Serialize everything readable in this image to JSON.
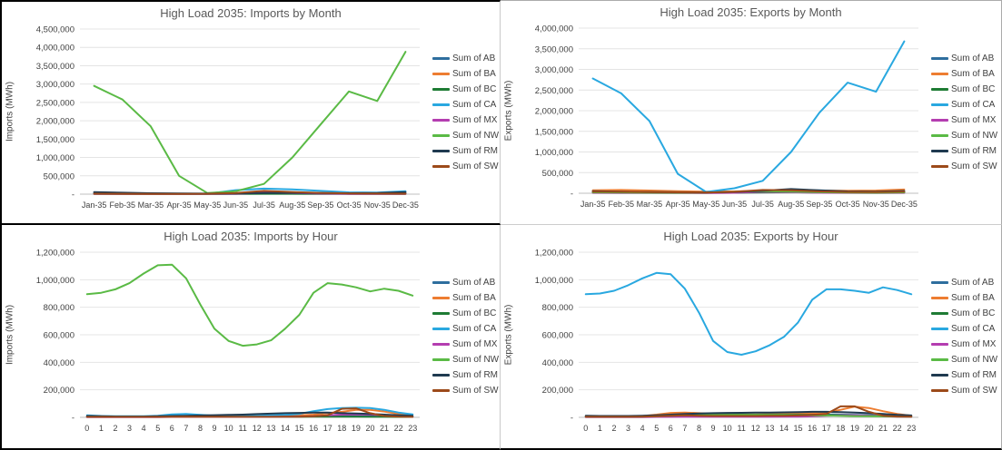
{
  "colors": {
    "grid": "#e4e4e4",
    "axis_line": "#bfbfbf",
    "title_text": "#595959",
    "tick_text": "#3f3f3f"
  },
  "palette": {
    "AB": "#2E6E9E",
    "BA": "#ED7D31",
    "BC": "#1E7B34",
    "CA": "#29A8E0",
    "MX": "#B43DB0",
    "NW": "#5ABA45",
    "RM": "#1F3A50",
    "SW": "#9C4A1A"
  },
  "chart_data": [
    {
      "type": "line",
      "title": "High Load 2035: Imports by Month",
      "ylabel": "Imports (MWh)",
      "xlabel": "",
      "ylim": [
        0,
        4500000
      ],
      "ystep": 500000,
      "zero_tick_label": "-",
      "grid": true,
      "legend_position": "right",
      "categories": [
        "Jan-35",
        "Feb-35",
        "Mar-35",
        "Apr-35",
        "May-35",
        "Jun-35",
        "Jul-35",
        "Aug-35",
        "Sep-35",
        "Oct-35",
        "Nov-35",
        "Dec-35"
      ],
      "series": [
        {
          "name": "Sum of AB",
          "key": "AB",
          "values": [
            20000,
            15000,
            12000,
            10000,
            8000,
            15000,
            20000,
            18000,
            15000,
            12000,
            12000,
            25000
          ]
        },
        {
          "name": "Sum of BA",
          "key": "BA",
          "values": [
            10000,
            8000,
            8000,
            10000,
            12000,
            15000,
            30000,
            25000,
            20000,
            15000,
            12000,
            10000
          ]
        },
        {
          "name": "Sum of BC",
          "key": "BC",
          "values": [
            8000,
            6000,
            5000,
            5000,
            5000,
            8000,
            10000,
            10000,
            8000,
            6000,
            6000,
            8000
          ]
        },
        {
          "name": "Sum of CA",
          "key": "CA",
          "values": [
            30000,
            25000,
            20000,
            15000,
            10000,
            110000,
            150000,
            130000,
            90000,
            50000,
            45000,
            80000
          ]
        },
        {
          "name": "Sum of MX",
          "key": "MX",
          "values": [
            5000,
            5000,
            5000,
            5000,
            5000,
            10000,
            40000,
            30000,
            15000,
            8000,
            5000,
            5000
          ]
        },
        {
          "name": "Sum of NW",
          "key": "NW",
          "values": [
            2950000,
            2580000,
            1850000,
            500000,
            30000,
            80000,
            280000,
            1000000,
            1900000,
            2800000,
            2540000,
            3880000
          ]
        },
        {
          "name": "Sum of RM",
          "key": "RM",
          "values": [
            55000,
            40000,
            25000,
            20000,
            15000,
            20000,
            30000,
            35000,
            30000,
            25000,
            30000,
            55000
          ]
        },
        {
          "name": "Sum of SW",
          "key": "SW",
          "values": [
            12000,
            10000,
            8000,
            8000,
            10000,
            30000,
            90000,
            60000,
            35000,
            20000,
            15000,
            12000
          ]
        }
      ]
    },
    {
      "type": "line",
      "title": "High Load 2035: Exports by Month",
      "ylabel": "Exports (MWh)",
      "xlabel": "",
      "ylim": [
        0,
        4000000
      ],
      "ystep": 500000,
      "zero_tick_label": "-",
      "grid": true,
      "legend_position": "right",
      "categories": [
        "Jan-35",
        "Feb-35",
        "Mar-35",
        "Apr-35",
        "May-35",
        "Jun-35",
        "Jul-35",
        "Aug-35",
        "Sep-35",
        "Oct-35",
        "Nov-35",
        "Dec-35"
      ],
      "series": [
        {
          "name": "Sum of AB",
          "key": "AB",
          "values": [
            40000,
            35000,
            30000,
            25000,
            20000,
            25000,
            40000,
            90000,
            60000,
            40000,
            35000,
            45000
          ]
        },
        {
          "name": "Sum of BA",
          "key": "BA",
          "values": [
            70000,
            80000,
            65000,
            50000,
            40000,
            45000,
            60000,
            70000,
            65000,
            60000,
            65000,
            90000
          ]
        },
        {
          "name": "Sum of BC",
          "key": "BC",
          "values": [
            15000,
            12000,
            10000,
            8000,
            8000,
            12000,
            20000,
            25000,
            18000,
            12000,
            12000,
            15000
          ]
        },
        {
          "name": "Sum of CA",
          "key": "CA",
          "values": [
            2780000,
            2420000,
            1750000,
            470000,
            30000,
            120000,
            300000,
            1000000,
            1950000,
            2680000,
            2460000,
            3680000
          ]
        },
        {
          "name": "Sum of MX",
          "key": "MX",
          "values": [
            8000,
            6000,
            5000,
            5000,
            5000,
            10000,
            35000,
            25000,
            12000,
            8000,
            6000,
            8000
          ]
        },
        {
          "name": "Sum of NW",
          "key": "NW",
          "values": [
            20000,
            15000,
            12000,
            10000,
            15000,
            40000,
            50000,
            40000,
            25000,
            15000,
            12000,
            20000
          ]
        },
        {
          "name": "Sum of RM",
          "key": "RM",
          "values": [
            50000,
            40000,
            30000,
            25000,
            20000,
            30000,
            60000,
            100000,
            70000,
            45000,
            40000,
            55000
          ]
        },
        {
          "name": "Sum of SW",
          "key": "SW",
          "values": [
            40000,
            35000,
            28000,
            22000,
            18000,
            35000,
            80000,
            70000,
            45000,
            30000,
            28000,
            40000
          ]
        }
      ]
    },
    {
      "type": "line",
      "title": "High Load 2035: Imports by Hour",
      "ylabel": "Imports (MWh)",
      "xlabel": "",
      "ylim": [
        0,
        1200000
      ],
      "ystep": 200000,
      "zero_tick_label": "-",
      "grid": true,
      "legend_position": "right",
      "categories": [
        "0",
        "1",
        "2",
        "3",
        "4",
        "5",
        "6",
        "7",
        "8",
        "9",
        "10",
        "11",
        "12",
        "13",
        "14",
        "15",
        "16",
        "17",
        "18",
        "19",
        "20",
        "21",
        "22",
        "23"
      ],
      "series": [
        {
          "name": "Sum of AB",
          "key": "AB",
          "values": [
            6000,
            5000,
            5000,
            5000,
            5000,
            5000,
            6000,
            7000,
            7000,
            6000,
            6000,
            6000,
            6000,
            7000,
            7000,
            8000,
            9000,
            10000,
            10000,
            9000,
            8000,
            8000,
            7000,
            6000
          ]
        },
        {
          "name": "Sum of BA",
          "key": "BA",
          "values": [
            4000,
            3000,
            3000,
            3000,
            3000,
            4000,
            6000,
            8000,
            8000,
            8000,
            8000,
            8000,
            9000,
            10000,
            12000,
            15000,
            20000,
            30000,
            40000,
            55000,
            55000,
            42000,
            25000,
            12000
          ]
        },
        {
          "name": "Sum of BC",
          "key": "BC",
          "values": [
            3000,
            3000,
            3000,
            3000,
            3000,
            3000,
            3000,
            4000,
            4000,
            4000,
            4000,
            4000,
            4000,
            4000,
            4000,
            4000,
            5000,
            5000,
            5000,
            5000,
            4000,
            4000,
            3000,
            3000
          ]
        },
        {
          "name": "Sum of CA",
          "key": "CA",
          "values": [
            15000,
            10000,
            8000,
            8000,
            8000,
            12000,
            22000,
            25000,
            18000,
            12000,
            10000,
            10000,
            12000,
            15000,
            18000,
            25000,
            45000,
            60000,
            68000,
            70000,
            68000,
            55000,
            35000,
            22000
          ]
        },
        {
          "name": "Sum of MX",
          "key": "MX",
          "values": [
            2000,
            2000,
            2000,
            2000,
            2000,
            2000,
            3000,
            3000,
            3000,
            3000,
            3000,
            3000,
            3000,
            4000,
            5000,
            6000,
            8000,
            15000,
            20000,
            22000,
            20000,
            15000,
            10000,
            4000
          ]
        },
        {
          "name": "Sum of NW",
          "key": "NW",
          "values": [
            895000,
            905000,
            930000,
            975000,
            1045000,
            1105000,
            1110000,
            1010000,
            820000,
            645000,
            555000,
            520000,
            530000,
            560000,
            645000,
            745000,
            905000,
            975000,
            965000,
            945000,
            915000,
            935000,
            920000,
            885000
          ]
        },
        {
          "name": "Sum of RM",
          "key": "RM",
          "values": [
            10000,
            8000,
            6000,
            6000,
            6000,
            8000,
            10000,
            12000,
            14000,
            16000,
            18000,
            20000,
            24000,
            27000,
            30000,
            32000,
            35000,
            35000,
            30000,
            28000,
            25000,
            20000,
            15000,
            12000
          ]
        },
        {
          "name": "Sum of SW",
          "key": "SW",
          "values": [
            3000,
            3000,
            3000,
            3000,
            3000,
            3000,
            4000,
            5000,
            4000,
            4000,
            4000,
            4000,
            4000,
            4000,
            5000,
            5000,
            8000,
            15000,
            62000,
            65000,
            30000,
            10000,
            5000,
            3000
          ]
        }
      ]
    },
    {
      "type": "line",
      "title": "High Load 2035: Exports by Hour",
      "ylabel": "Exports (MWh)",
      "xlabel": "",
      "ylim": [
        0,
        1200000
      ],
      "ystep": 200000,
      "zero_tick_label": "-",
      "grid": true,
      "legend_position": "right",
      "categories": [
        "0",
        "1",
        "2",
        "3",
        "4",
        "5",
        "6",
        "7",
        "8",
        "9",
        "10",
        "11",
        "12",
        "13",
        "14",
        "15",
        "16",
        "17",
        "18",
        "19",
        "20",
        "21",
        "22",
        "23"
      ],
      "series": [
        {
          "name": "Sum of AB",
          "key": "AB",
          "values": [
            8000,
            7000,
            7000,
            7000,
            8000,
            10000,
            14000,
            16000,
            17000,
            18000,
            18000,
            18000,
            18000,
            19000,
            20000,
            21000,
            22000,
            22000,
            20000,
            18000,
            16000,
            14000,
            12000,
            10000
          ]
        },
        {
          "name": "Sum of BA",
          "key": "BA",
          "values": [
            5000,
            5000,
            5000,
            6000,
            10000,
            20000,
            32000,
            35000,
            30000,
            26000,
            24000,
            22000,
            22000,
            24000,
            26000,
            28000,
            30000,
            35000,
            55000,
            78000,
            68000,
            45000,
            25000,
            12000
          ]
        },
        {
          "name": "Sum of BC",
          "key": "BC",
          "values": [
            6000,
            6000,
            6000,
            6000,
            7000,
            9000,
            12000,
            15000,
            17000,
            18000,
            19000,
            19000,
            19000,
            19000,
            19000,
            19000,
            18000,
            17000,
            15000,
            13000,
            11000,
            9000,
            8000,
            7000
          ]
        },
        {
          "name": "Sum of CA",
          "key": "CA",
          "values": [
            895000,
            900000,
            920000,
            960000,
            1010000,
            1050000,
            1040000,
            935000,
            760000,
            555000,
            475000,
            455000,
            480000,
            525000,
            585000,
            690000,
            855000,
            930000,
            930000,
            920000,
            905000,
            945000,
            925000,
            895000
          ]
        },
        {
          "name": "Sum of MX",
          "key": "MX",
          "values": [
            2000,
            2000,
            2000,
            2000,
            2000,
            3000,
            3000,
            4000,
            4000,
            4000,
            4000,
            4000,
            4000,
            4000,
            5000,
            5000,
            7000,
            12000,
            15000,
            15000,
            12000,
            8000,
            5000,
            3000
          ]
        },
        {
          "name": "Sum of NW",
          "key": "NW",
          "values": [
            5000,
            5000,
            5000,
            5000,
            6000,
            8000,
            11000,
            14000,
            16000,
            17000,
            18000,
            18000,
            18000,
            18000,
            17000,
            16000,
            15000,
            13000,
            11000,
            9000,
            8000,
            7000,
            6000,
            5000
          ]
        },
        {
          "name": "Sum of RM",
          "key": "RM",
          "values": [
            12000,
            10000,
            10000,
            10000,
            12000,
            15000,
            20000,
            25000,
            28000,
            30000,
            32000,
            33000,
            34000,
            35000,
            36000,
            38000,
            40000,
            40000,
            38000,
            35000,
            30000,
            25000,
            18000,
            14000
          ]
        },
        {
          "name": "Sum of SW",
          "key": "SW",
          "values": [
            4000,
            4000,
            4000,
            4000,
            5000,
            8000,
            12000,
            15000,
            12000,
            10000,
            10000,
            10000,
            10000,
            12000,
            12000,
            14000,
            18000,
            25000,
            80000,
            80000,
            40000,
            12000,
            6000,
            5000
          ]
        }
      ]
    }
  ]
}
